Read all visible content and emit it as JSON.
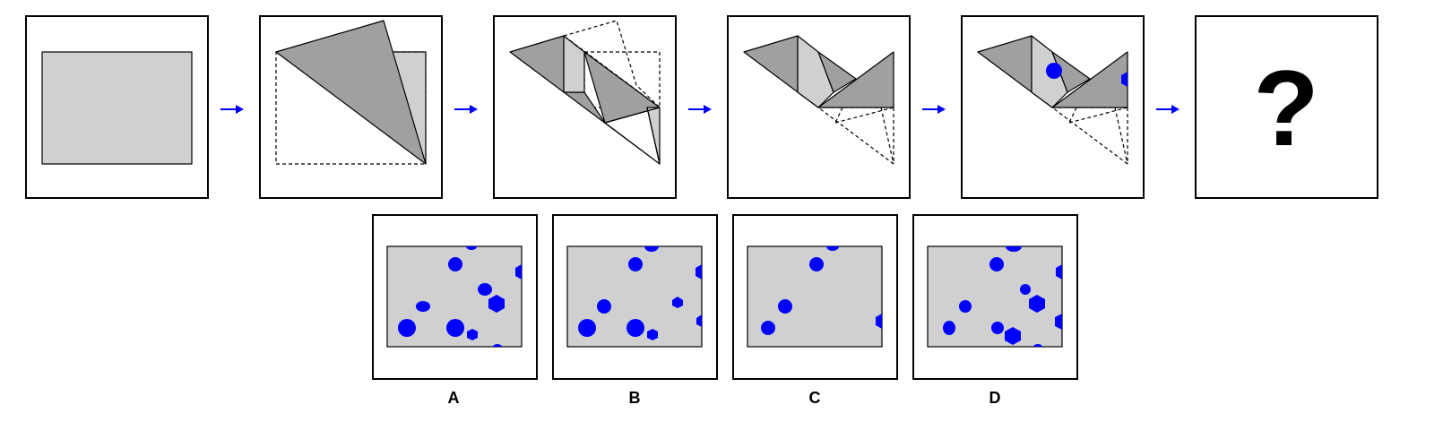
{
  "sequence": {
    "question_mark": "?"
  },
  "options": [
    {
      "label": "A"
    },
    {
      "label": "B"
    },
    {
      "label": "C"
    },
    {
      "label": "D"
    }
  ],
  "colors": {
    "paper": "#d0d0d0",
    "fold_shade": "#a0a0a0",
    "hole": "#0000ff",
    "arrow": "#0000ff",
    "outline": "#000000"
  }
}
